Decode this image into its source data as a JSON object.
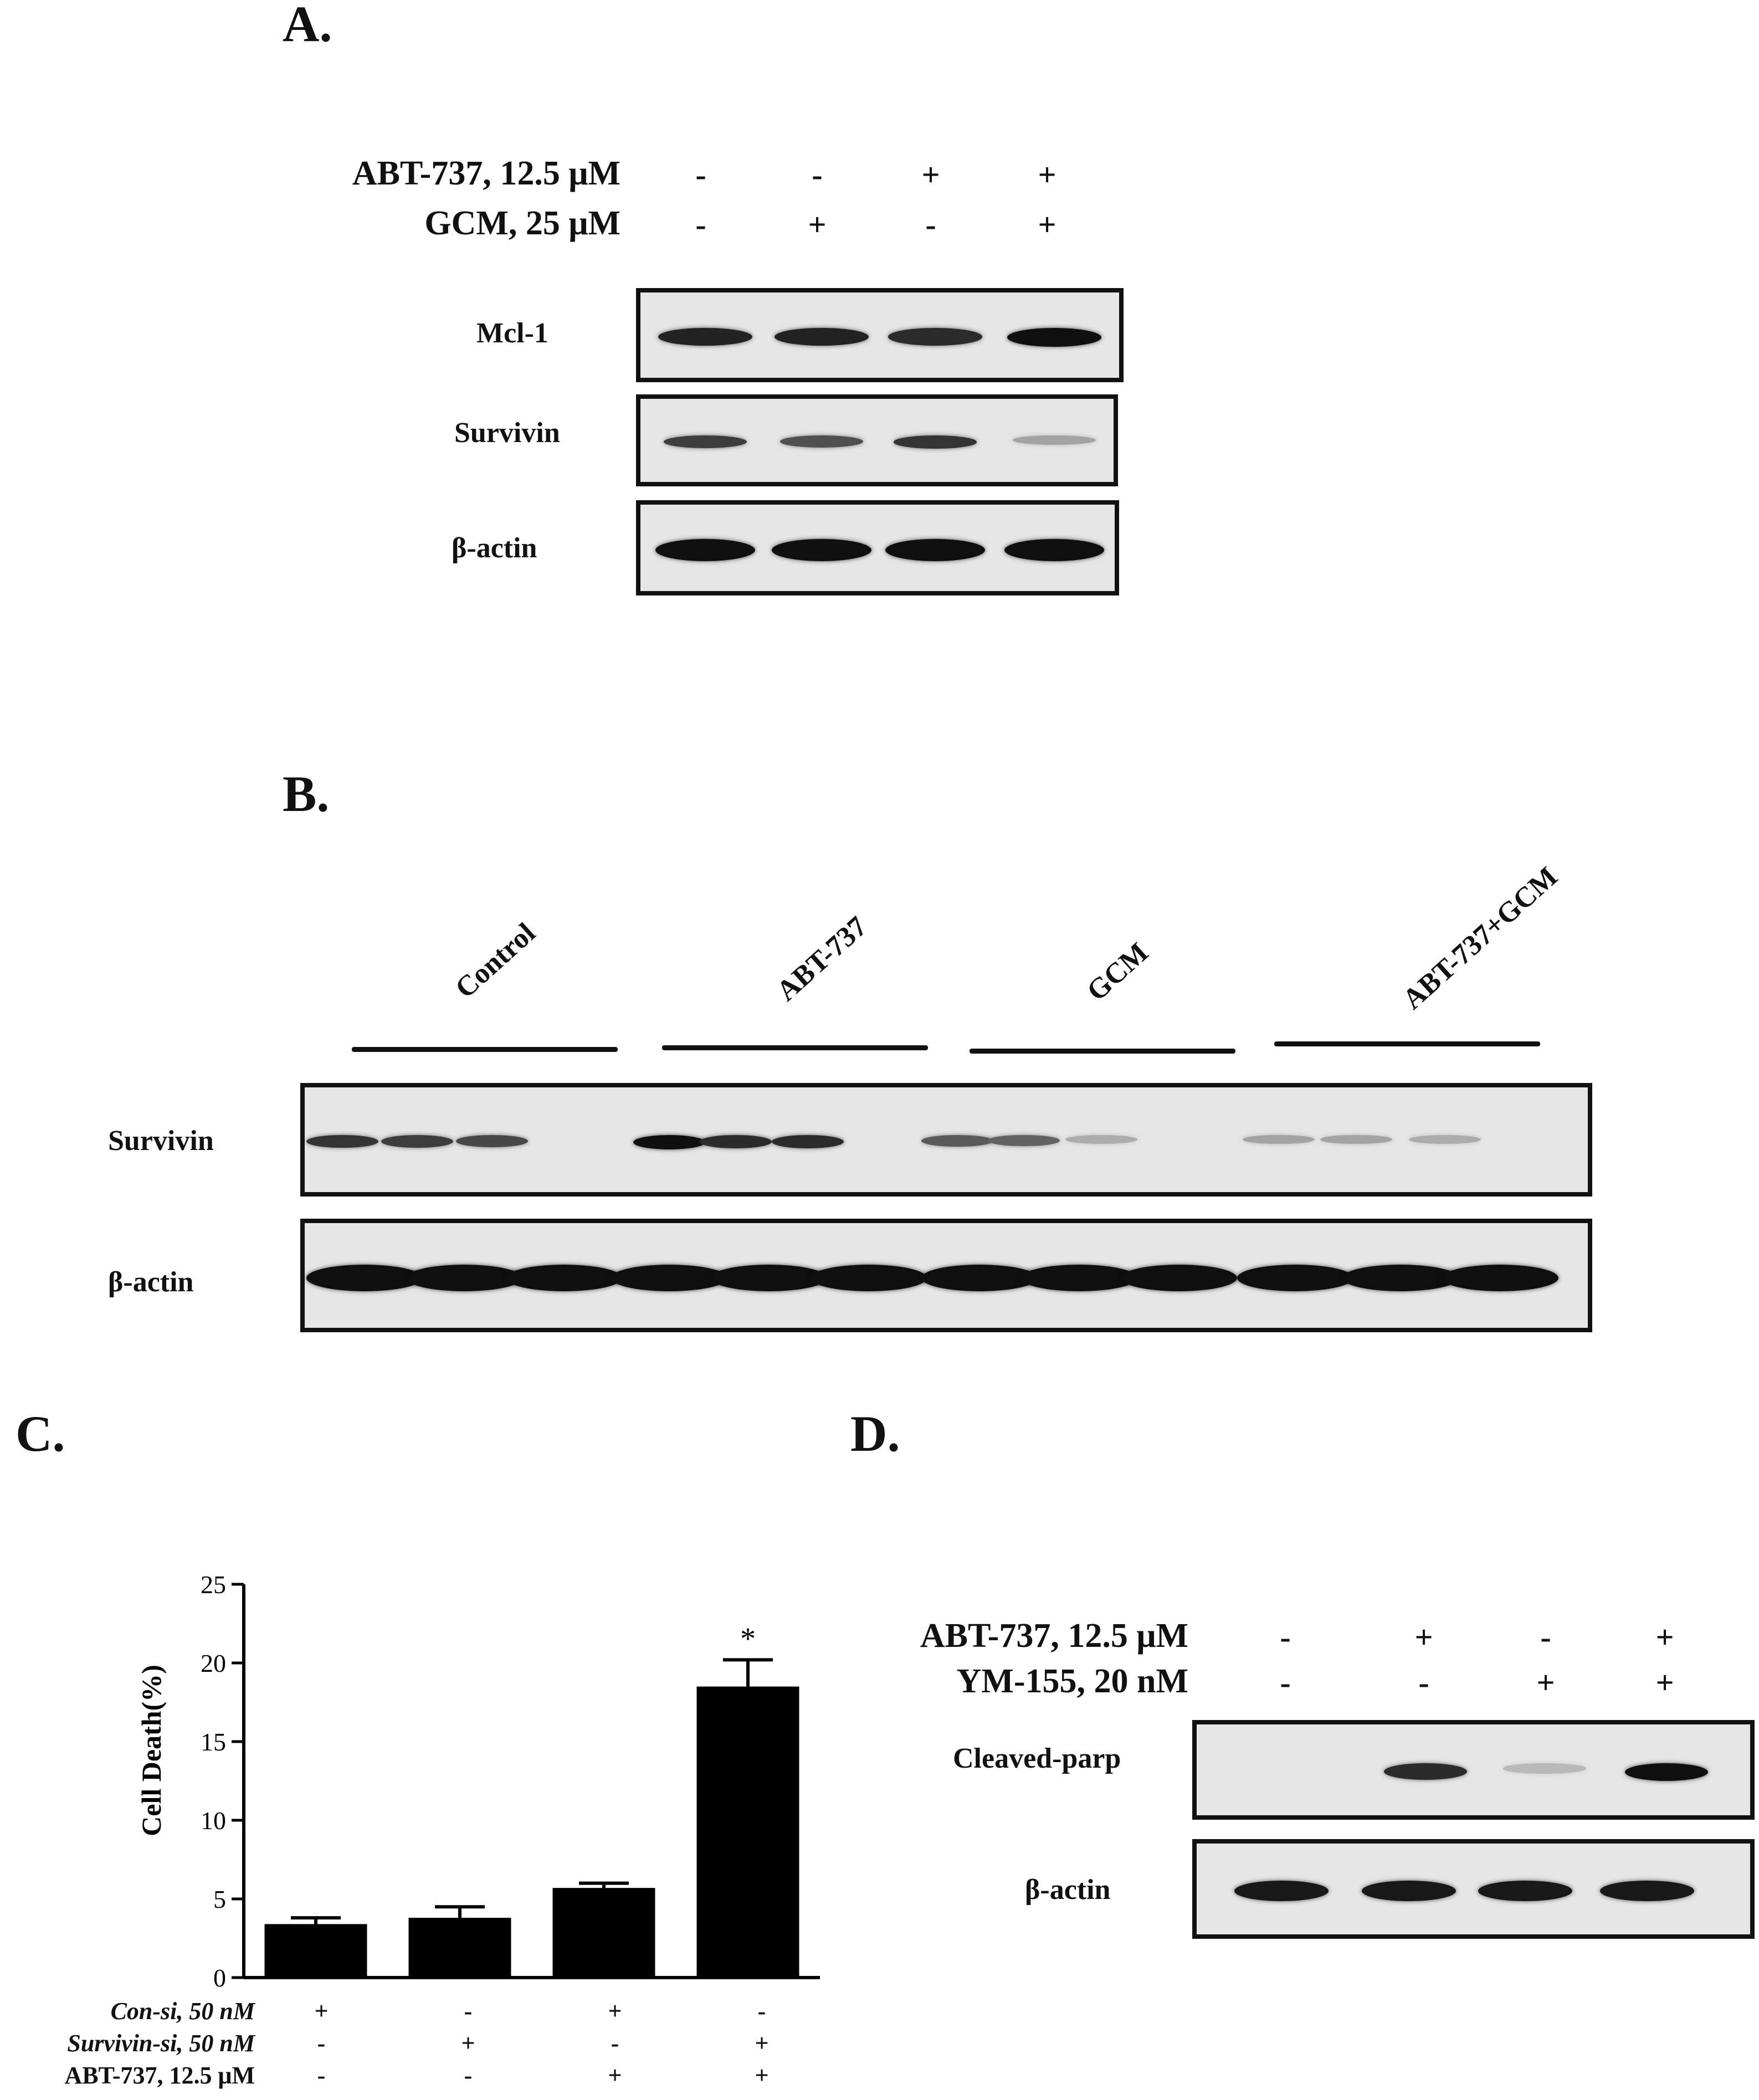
{
  "panel_a": {
    "letter": "A.",
    "treatments": [
      {
        "label": "ABT-737, 12.5 μM",
        "signs": [
          "-",
          "-",
          "+",
          "+"
        ]
      },
      {
        "label": "GCM, 25 μM",
        "signs": [
          "-",
          "+",
          "-",
          "+"
        ]
      }
    ],
    "blots": [
      {
        "label": "Mcl-1",
        "intensity": [
          0.9,
          0.9,
          0.85,
          1.0
        ]
      },
      {
        "label": "Survivin",
        "intensity": [
          0.75,
          0.65,
          0.8,
          0.2
        ]
      },
      {
        "label": "β-actin",
        "intensity": [
          1.0,
          1.0,
          1.0,
          1.0
        ]
      }
    ]
  },
  "panel_b": {
    "letter": "B.",
    "groups": [
      "Control",
      "ABT-737",
      "GCM",
      "ABT-737+GCM"
    ],
    "blots": [
      {
        "label": "Survivin",
        "intensity": [
          0.8,
          0.75,
          0.7,
          1.0,
          0.85,
          0.85,
          0.6,
          0.55,
          0.15,
          0.2,
          0.2,
          0.15
        ]
      },
      {
        "label": "β-actin",
        "intensity": [
          1.0,
          1.0,
          1.0,
          1.0,
          1.0,
          1.0,
          1.0,
          1.0,
          1.0,
          1.0,
          1.0,
          1.0
        ]
      }
    ]
  },
  "panel_c": {
    "letter": "C.",
    "treatments": [
      {
        "label": "Con-si, 50 nM",
        "italic": true,
        "signs": [
          "+",
          "-",
          "+",
          "-"
        ]
      },
      {
        "label": "Survivin-si, 50 nM",
        "italic": true,
        "signs": [
          "-",
          "+",
          "-",
          "+"
        ]
      },
      {
        "label": "ABT-737, 12.5 μM",
        "italic": false,
        "signs": [
          "-",
          "-",
          "+",
          "+"
        ]
      }
    ]
  },
  "panel_d": {
    "letter": "D.",
    "treatments": [
      {
        "label": "ABT-737, 12.5 μM",
        "signs": [
          "-",
          "+",
          "-",
          "+"
        ]
      },
      {
        "label": "YM-155, 20 nM",
        "signs": [
          "-",
          "-",
          "+",
          "+"
        ]
      }
    ],
    "blots": [
      {
        "label": "Cleaved-parp",
        "intensity": [
          0.0,
          0.85,
          0.08,
          1.0
        ]
      },
      {
        "label": "β-actin",
        "intensity": [
          0.95,
          0.95,
          0.95,
          0.95
        ]
      }
    ]
  },
  "chart_data": {
    "type": "bar",
    "categories": [
      "1",
      "2",
      "3",
      "4"
    ],
    "values": [
      3.4,
      3.8,
      5.7,
      18.5
    ],
    "errors": [
      0.4,
      0.7,
      0.3,
      1.7
    ],
    "annotations": [
      "",
      "",
      "",
      "*"
    ],
    "title": "",
    "xlabel": "",
    "ylabel": "Cell Death(%)",
    "ylim": [
      0,
      25
    ],
    "yticks": [
      0,
      5,
      10,
      15,
      20,
      25
    ],
    "grid": false,
    "legend": "none",
    "bar_color": "#000000"
  }
}
